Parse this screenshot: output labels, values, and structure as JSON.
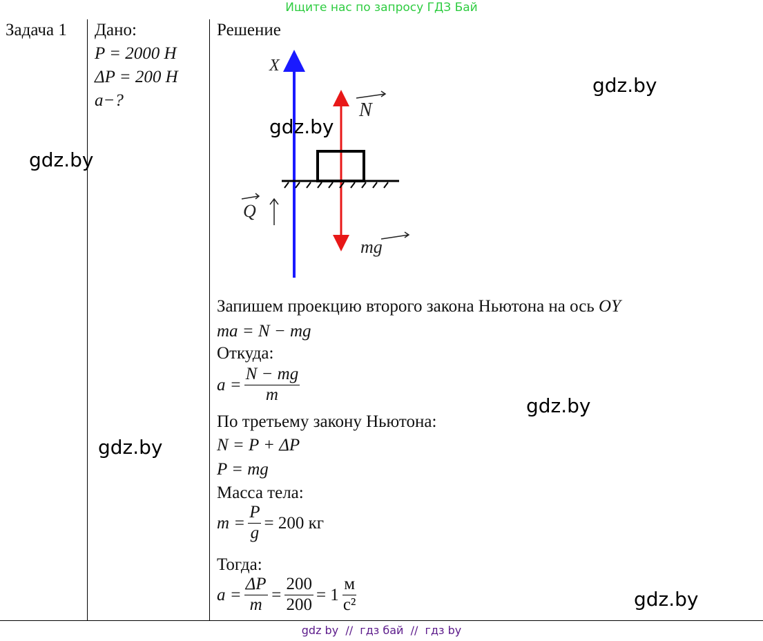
{
  "banner": "Ищите нас по запросу ГДЗ Бай",
  "task": "Задача 1",
  "given": {
    "title": "Дано:",
    "p": "P = 2000 Н",
    "dp": "ΔP = 200 Н",
    "find": "a−?"
  },
  "solution": {
    "title": "Решение",
    "diagram": {
      "x_axis": "X",
      "n": "N",
      "q": "Q",
      "mg": "mg"
    },
    "step1": {
      "text": "Запишем проекцию второго закона Ньютона на ось",
      "axis": "OY"
    },
    "eq1": "ma = N − mg",
    "from": "Откуда:",
    "eq2": {
      "lhs": "a =",
      "num": "N − mg",
      "den": "m"
    },
    "third_law": "По третьему закону Ньютона:",
    "eq3": "N = P + ΔP",
    "eq4": "P = mg",
    "mass": "Масса тела:",
    "eq5": {
      "lhs": "m =",
      "num": "P",
      "den": "g",
      "rhs": "= 200 кг"
    },
    "then": "Тогда:",
    "eq6": {
      "lhs": "a =",
      "num1": "ΔP",
      "den1": "m",
      "mid": "=",
      "num2": "200",
      "den2": "200",
      "rhs": "= 1",
      "unit_num": "м",
      "unit_den": "с²"
    }
  },
  "watermarks": [
    "gdz.by",
    "gdz.by",
    "gdz.by",
    "gdz.by",
    "gdz.by",
    "gdz.by"
  ],
  "footer": "gdz by  //  гдз бай  //  гдз by"
}
